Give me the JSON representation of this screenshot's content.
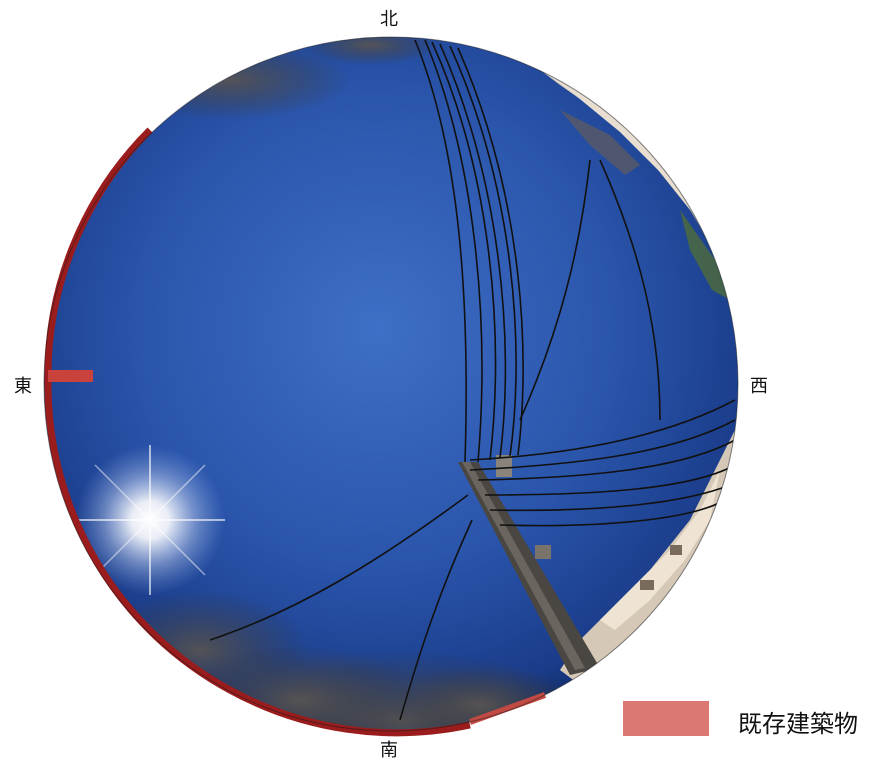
{
  "compass": {
    "north": "北",
    "south": "南",
    "east": "東",
    "west": "西"
  },
  "legend": {
    "label": "既存建築物",
    "color": "#db7873"
  },
  "colors": {
    "sky_center": "#2f5cb2",
    "sky_edge": "#0f2a66",
    "building_outline": "#9b1c1c"
  }
}
